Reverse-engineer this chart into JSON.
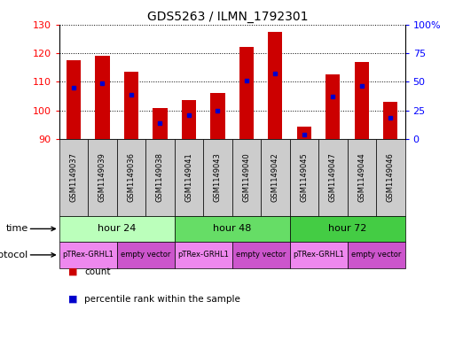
{
  "title": "GDS5263 / ILMN_1792301",
  "samples": [
    "GSM1149037",
    "GSM1149039",
    "GSM1149036",
    "GSM1149038",
    "GSM1149041",
    "GSM1149043",
    "GSM1149040",
    "GSM1149042",
    "GSM1149045",
    "GSM1149047",
    "GSM1149044",
    "GSM1149046"
  ],
  "bar_tops": [
    117.5,
    119.0,
    113.5,
    101.0,
    103.5,
    106.0,
    122.0,
    127.5,
    94.5,
    112.5,
    117.0,
    103.0
  ],
  "bar_bottom": 90,
  "blue_markers": [
    108.0,
    109.5,
    105.5,
    95.5,
    98.5,
    100.0,
    110.5,
    113.0,
    91.5,
    105.0,
    108.5,
    97.5
  ],
  "ylim": [
    90,
    130
  ],
  "yticks_left": [
    90,
    100,
    110,
    120,
    130
  ],
  "right_axis_ticks": [
    0,
    25,
    50,
    75,
    100
  ],
  "right_axis_labels": [
    "0",
    "25",
    "50",
    "75",
    "100%"
  ],
  "bar_color": "#cc0000",
  "blue_color": "#0000cc",
  "time_groups": [
    {
      "label": "hour 24",
      "start": 0,
      "end": 4,
      "color": "#bbffbb"
    },
    {
      "label": "hour 48",
      "start": 4,
      "end": 8,
      "color": "#66dd66"
    },
    {
      "label": "hour 72",
      "start": 8,
      "end": 12,
      "color": "#44cc44"
    }
  ],
  "protocol_groups": [
    {
      "label": "pTRex-GRHL1",
      "start": 0,
      "end": 2,
      "color": "#ee88ee"
    },
    {
      "label": "empty vector",
      "start": 2,
      "end": 4,
      "color": "#cc55cc"
    },
    {
      "label": "pTRex-GRHL1",
      "start": 4,
      "end": 6,
      "color": "#ee88ee"
    },
    {
      "label": "empty vector",
      "start": 6,
      "end": 8,
      "color": "#cc55cc"
    },
    {
      "label": "pTRex-GRHL1",
      "start": 8,
      "end": 10,
      "color": "#ee88ee"
    },
    {
      "label": "empty vector",
      "start": 10,
      "end": 12,
      "color": "#cc55cc"
    }
  ],
  "sample_row_color": "#cccccc",
  "bar_width": 0.5
}
